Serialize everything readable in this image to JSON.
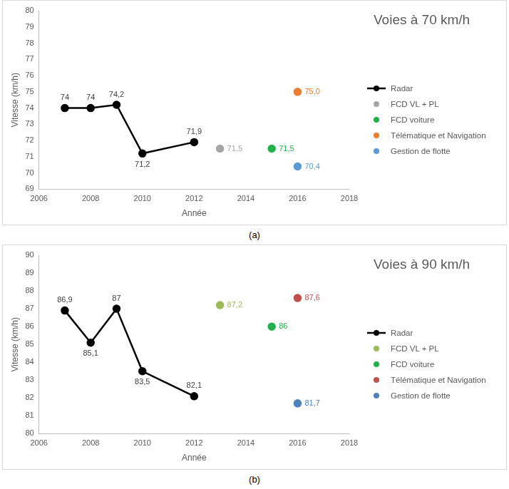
{
  "chart_data": [
    {
      "type": "line",
      "title": "Voies à 70 km/h",
      "x_label": "Année",
      "y_label": "Vitesse (km/h)",
      "caption": "(a)",
      "xlim": [
        2006,
        2018
      ],
      "xticks": [
        2006,
        2008,
        2010,
        2012,
        2014,
        2016,
        2018
      ],
      "ylim": [
        69,
        80
      ],
      "yticks": [
        69,
        70,
        71,
        72,
        73,
        74,
        75,
        76,
        77,
        78,
        79,
        80
      ],
      "grid": false,
      "legend": "right",
      "data_labels": true,
      "series": [
        {
          "name": "Radar",
          "color": "#000000",
          "marker": "circle",
          "line_style": "solid",
          "x": [
            2007,
            2008,
            2009,
            2010,
            2012
          ],
          "values": [
            74,
            74,
            74.2,
            71.2,
            71.9
          ],
          "value_labels": [
            "74",
            "74",
            "74,2",
            "71,2",
            "71,9"
          ]
        },
        {
          "name": "FCD VL + PL",
          "color": "#a5a5a5",
          "marker": "circle",
          "line_style": "none",
          "x": [
            2013
          ],
          "values": [
            71.5
          ],
          "value_labels": [
            "71,5"
          ]
        },
        {
          "name": "FCD voiture",
          "color": "#22b14c",
          "marker": "circle",
          "line_style": "none",
          "x": [
            2015
          ],
          "values": [
            71.5
          ],
          "value_labels": [
            "71,5"
          ]
        },
        {
          "name": "Télématique et Navigation",
          "color": "#ed7d31",
          "marker": "circle",
          "line_style": "none",
          "x": [
            2016
          ],
          "values": [
            75.0
          ],
          "value_labels": [
            "75,0"
          ]
        },
        {
          "name": "Gestion de flotte",
          "color": "#5b9bd5",
          "marker": "circle",
          "line_style": "none",
          "x": [
            2016
          ],
          "values": [
            70.4
          ],
          "value_labels": [
            "70,4"
          ]
        }
      ]
    },
    {
      "type": "line",
      "title": "Voies à 90 km/h",
      "x_label": "Année",
      "y_label": "Vitesse (km/h)",
      "caption": "(b)",
      "xlim": [
        2006,
        2018
      ],
      "xticks": [
        2006,
        2008,
        2010,
        2012,
        2014,
        2016,
        2018
      ],
      "ylim": [
        80,
        90
      ],
      "yticks": [
        80,
        81,
        82,
        83,
        84,
        85,
        86,
        87,
        88,
        89,
        90
      ],
      "grid": false,
      "legend": "right",
      "data_labels": true,
      "series": [
        {
          "name": "Radar",
          "color": "#000000",
          "marker": "circle",
          "line_style": "solid",
          "x": [
            2007,
            2008,
            2009,
            2010,
            2012
          ],
          "values": [
            86.9,
            85.1,
            87,
            83.5,
            82.1
          ],
          "value_labels": [
            "86,9",
            "85,1",
            "87",
            "83,5",
            "82,1"
          ]
        },
        {
          "name": "FCD VL + PL",
          "color": "#9bbb59",
          "marker": "circle",
          "line_style": "none",
          "x": [
            2013
          ],
          "values": [
            87.2
          ],
          "value_labels": [
            "87,2"
          ]
        },
        {
          "name": "FCD voiture",
          "color": "#22b14c",
          "marker": "circle",
          "line_style": "none",
          "x": [
            2015
          ],
          "values": [
            86
          ],
          "value_labels": [
            "86"
          ]
        },
        {
          "name": "Télématique et Navigation",
          "color": "#c0504d",
          "marker": "circle",
          "line_style": "none",
          "x": [
            2016
          ],
          "values": [
            87.6
          ],
          "value_labels": [
            "87,6"
          ]
        },
        {
          "name": "Gestion de flotte",
          "color": "#4f81bd",
          "marker": "circle",
          "line_style": "none",
          "x": [
            2016
          ],
          "values": [
            81.7
          ],
          "value_labels": [
            "81,7"
          ]
        }
      ]
    }
  ]
}
